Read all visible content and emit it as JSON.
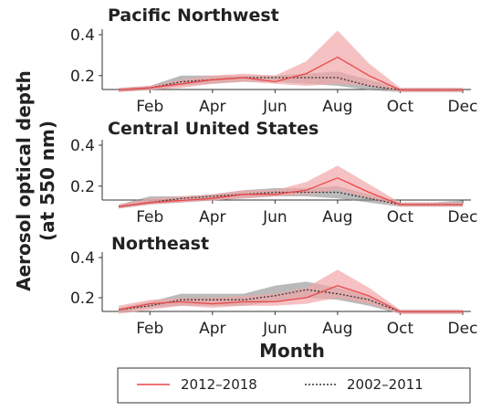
{
  "figure": {
    "ylabel_line1": "Aerosol optical depth",
    "ylabel_line2": "(at 550 nm)",
    "xlabel": "Month"
  },
  "legend": {
    "placement": "bottom-center",
    "items": [
      {
        "label": "2012–2018",
        "style": "solid",
        "color": "#e8474a"
      },
      {
        "label": "2002–2011",
        "style": "dotted",
        "color": "#333333"
      }
    ]
  },
  "colors": {
    "recent_line": "#e8474a",
    "recent_band": "#f2a6a8",
    "past_line": "#333333",
    "past_band": "#8c8c8c"
  },
  "chart_data": [
    {
      "type": "line",
      "title": "Pacific Northwest",
      "x": [
        "Jan",
        "Feb",
        "Mar",
        "Apr",
        "May",
        "Jun",
        "Jul",
        "Aug",
        "Sep",
        "Oct",
        "Nov",
        "Dec"
      ],
      "x_tick_labels": [
        "Feb",
        "Apr",
        "Jun",
        "Aug",
        "Oct",
        "Dec"
      ],
      "y_tick_labels": [
        "0.2",
        "0.4"
      ],
      "ylim": [
        0.1,
        0.45
      ],
      "series": [
        {
          "name": "2012–2018",
          "values": [
            0.13,
            0.14,
            0.16,
            0.18,
            0.19,
            0.17,
            0.21,
            0.29,
            0.2,
            0.13,
            0.13,
            0.13
          ],
          "lower": [
            0.12,
            0.13,
            0.14,
            0.16,
            0.17,
            0.16,
            0.15,
            0.16,
            0.15,
            0.12,
            0.12,
            0.12
          ],
          "upper": [
            0.14,
            0.15,
            0.18,
            0.2,
            0.21,
            0.2,
            0.27,
            0.42,
            0.26,
            0.14,
            0.14,
            0.14
          ]
        },
        {
          "name": "2002–2011",
          "values": [
            0.13,
            0.14,
            0.17,
            0.18,
            0.19,
            0.19,
            0.19,
            0.19,
            0.15,
            0.13,
            0.13,
            0.13
          ],
          "lower": [
            0.12,
            0.13,
            0.15,
            0.16,
            0.17,
            0.17,
            0.16,
            0.15,
            0.13,
            0.12,
            0.12,
            0.12
          ],
          "upper": [
            0.14,
            0.15,
            0.2,
            0.2,
            0.2,
            0.2,
            0.21,
            0.22,
            0.18,
            0.14,
            0.14,
            0.14
          ]
        }
      ]
    },
    {
      "type": "line",
      "title": "Central United States",
      "x": [
        "Jan",
        "Feb",
        "Mar",
        "Apr",
        "May",
        "Jun",
        "Jul",
        "Aug",
        "Sep",
        "Oct",
        "Nov",
        "Dec"
      ],
      "x_tick_labels": [
        "Feb",
        "Apr",
        "Jun",
        "Aug",
        "Oct",
        "Dec"
      ],
      "y_tick_labels": [
        "0.2",
        "0.4"
      ],
      "ylim": [
        0.1,
        0.45
      ],
      "series": [
        {
          "name": "2012–2018",
          "values": [
            0.1,
            0.12,
            0.13,
            0.14,
            0.16,
            0.16,
            0.18,
            0.24,
            0.17,
            0.11,
            0.11,
            0.11
          ],
          "lower": [
            0.09,
            0.11,
            0.12,
            0.13,
            0.14,
            0.15,
            0.16,
            0.18,
            0.14,
            0.1,
            0.1,
            0.1
          ],
          "upper": [
            0.11,
            0.14,
            0.15,
            0.16,
            0.18,
            0.18,
            0.22,
            0.3,
            0.21,
            0.12,
            0.12,
            0.12
          ]
        },
        {
          "name": "2002–2011",
          "values": [
            0.1,
            0.12,
            0.14,
            0.15,
            0.16,
            0.17,
            0.17,
            0.17,
            0.14,
            0.11,
            0.11,
            0.11
          ],
          "lower": [
            0.09,
            0.11,
            0.12,
            0.13,
            0.14,
            0.15,
            0.15,
            0.14,
            0.12,
            0.1,
            0.1,
            0.1
          ],
          "upper": [
            0.11,
            0.15,
            0.15,
            0.16,
            0.18,
            0.19,
            0.19,
            0.2,
            0.16,
            0.12,
            0.12,
            0.13
          ]
        }
      ]
    },
    {
      "type": "line",
      "title": "Northeast",
      "x": [
        "Jan",
        "Feb",
        "Mar",
        "Apr",
        "May",
        "Jun",
        "Jul",
        "Aug",
        "Sep",
        "Oct",
        "Nov",
        "Dec"
      ],
      "x_tick_labels": [
        "Feb",
        "Apr",
        "Jun",
        "Aug",
        "Oct",
        "Dec"
      ],
      "y_tick_labels": [
        "0.2",
        "0.4"
      ],
      "ylim": [
        0.1,
        0.45
      ],
      "series": [
        {
          "name": "2012–2018",
          "values": [
            0.14,
            0.17,
            0.18,
            0.17,
            0.18,
            0.18,
            0.2,
            0.26,
            0.21,
            0.13,
            0.13,
            0.13
          ],
          "lower": [
            0.12,
            0.14,
            0.16,
            0.15,
            0.16,
            0.16,
            0.17,
            0.2,
            0.17,
            0.12,
            0.12,
            0.12
          ],
          "upper": [
            0.16,
            0.19,
            0.2,
            0.2,
            0.21,
            0.22,
            0.25,
            0.34,
            0.25,
            0.14,
            0.14,
            0.14
          ]
        },
        {
          "name": "2002–2011",
          "values": [
            0.14,
            0.16,
            0.19,
            0.19,
            0.19,
            0.21,
            0.24,
            0.22,
            0.19,
            0.13,
            0.13,
            0.13
          ],
          "lower": [
            0.13,
            0.15,
            0.16,
            0.16,
            0.16,
            0.18,
            0.2,
            0.19,
            0.16,
            0.12,
            0.12,
            0.12
          ],
          "upper": [
            0.15,
            0.18,
            0.22,
            0.22,
            0.22,
            0.26,
            0.28,
            0.25,
            0.21,
            0.14,
            0.14,
            0.14
          ]
        }
      ]
    }
  ]
}
